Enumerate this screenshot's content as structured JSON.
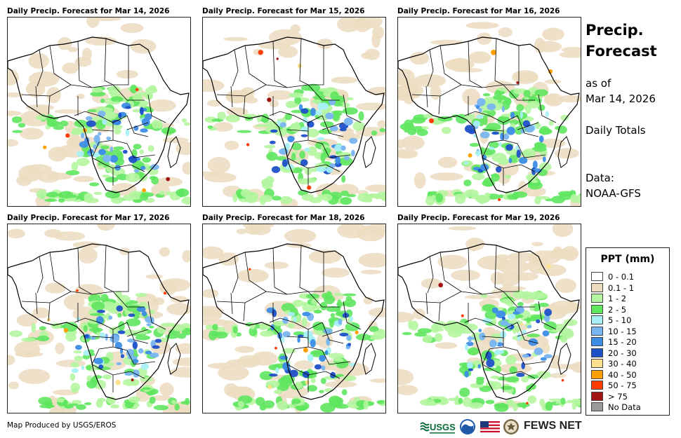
{
  "panels": [
    {
      "title": "Daily Precip. Forecast for Mar 14, 2026"
    },
    {
      "title": "Daily Precip. Forecast for Mar 15, 2026"
    },
    {
      "title": "Daily Precip. Forecast for Mar 16, 2026"
    },
    {
      "title": "Daily Precip. Forecast for Mar 17, 2026"
    },
    {
      "title": "Daily Precip. Forecast for Mar 18, 2026"
    },
    {
      "title": "Daily Precip. Forecast for Mar 19, 2026"
    }
  ],
  "side": {
    "title_line1": "Precip.",
    "title_line2": "Forecast",
    "as_of": "as of",
    "date": "Mar 14, 2026",
    "totals": "Daily Totals",
    "data_label": "Data:",
    "data_source": "NOAA-GFS"
  },
  "legend": {
    "title": "PPT (mm)",
    "items": [
      {
        "label": "0 - 0.1",
        "color": "#ffffff"
      },
      {
        "label": "0.1 - 1",
        "color": "#ecdcbf"
      },
      {
        "label": "1 - 2",
        "color": "#b4f5a0"
      },
      {
        "label": "2 - 5",
        "color": "#5ee65e"
      },
      {
        "label": "5 - 10",
        "color": "#a8f0f5"
      },
      {
        "label": "10 - 15",
        "color": "#78b4f0"
      },
      {
        "label": "15 - 20",
        "color": "#3c8ce6"
      },
      {
        "label": "20 - 30",
        "color": "#1e50c8"
      },
      {
        "label": "30 - 40",
        "color": "#ffe08c"
      },
      {
        "label": "40 - 50",
        "color": "#ffa000"
      },
      {
        "label": "50 - 75",
        "color": "#ff3c00"
      },
      {
        "label": "> 75",
        "color": "#a01414"
      },
      {
        "label": "No Data",
        "color": "#999999"
      }
    ]
  },
  "footer": {
    "credit": "Map Produced by USGS/EROS"
  },
  "logos": {
    "usgs": "USGS",
    "fewsnet": "FEWS NET"
  }
}
